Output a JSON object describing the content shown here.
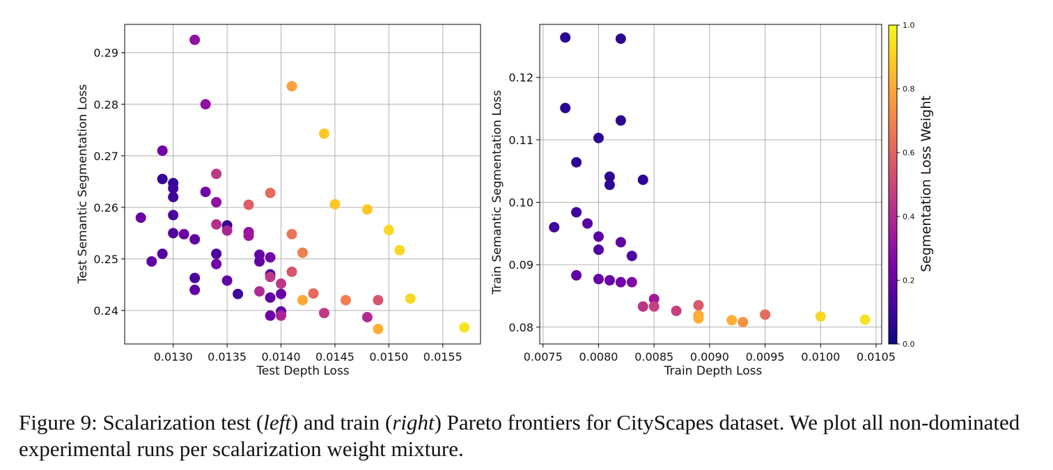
{
  "chart_data": [
    {
      "type": "scatter",
      "xlabel": "Test Depth Loss",
      "ylabel": "Test Semantic Segmentation Loss",
      "xlim": [
        0.01255,
        0.01585
      ],
      "ylim": [
        0.2335,
        0.2955
      ],
      "xticks": [
        "0.0130",
        "0.0135",
        "0.0140",
        "0.0145",
        "0.0150",
        "0.0155"
      ],
      "xtick_values": [
        0.013,
        0.0135,
        0.014,
        0.0145,
        0.015,
        0.0155
      ],
      "yticks": [
        "0.24",
        "0.25",
        "0.26",
        "0.27",
        "0.28",
        "0.29"
      ],
      "ytick_values": [
        0.24,
        0.25,
        0.26,
        0.27,
        0.28,
        0.29
      ],
      "grid": true,
      "color_by": "Segmentation Loss Weight",
      "points": [
        {
          "x": 0.0132,
          "y": 0.2925,
          "w": 0.3
        },
        {
          "x": 0.0133,
          "y": 0.28,
          "w": 0.3
        },
        {
          "x": 0.0129,
          "y": 0.271,
          "w": 0.22
        },
        {
          "x": 0.0129,
          "y": 0.2655,
          "w": 0.08
        },
        {
          "x": 0.013,
          "y": 0.2647,
          "w": 0.08
        },
        {
          "x": 0.013,
          "y": 0.2637,
          "w": 0.1
        },
        {
          "x": 0.013,
          "y": 0.262,
          "w": 0.1
        },
        {
          "x": 0.013,
          "y": 0.2585,
          "w": 0.12
        },
        {
          "x": 0.0127,
          "y": 0.258,
          "w": 0.2
        },
        {
          "x": 0.013,
          "y": 0.255,
          "w": 0.15
        },
        {
          "x": 0.0131,
          "y": 0.2548,
          "w": 0.2
        },
        {
          "x": 0.0132,
          "y": 0.2538,
          "w": 0.18
        },
        {
          "x": 0.0129,
          "y": 0.251,
          "w": 0.14
        },
        {
          "x": 0.0128,
          "y": 0.2495,
          "w": 0.18
        },
        {
          "x": 0.0132,
          "y": 0.2463,
          "w": 0.12
        },
        {
          "x": 0.0132,
          "y": 0.244,
          "w": 0.18
        },
        {
          "x": 0.0133,
          "y": 0.263,
          "w": 0.22
        },
        {
          "x": 0.0134,
          "y": 0.2665,
          "w": 0.45
        },
        {
          "x": 0.0134,
          "y": 0.261,
          "w": 0.3
        },
        {
          "x": 0.0134,
          "y": 0.2567,
          "w": 0.42
        },
        {
          "x": 0.0135,
          "y": 0.2565,
          "w": 0.08
        },
        {
          "x": 0.0135,
          "y": 0.2555,
          "w": 0.38
        },
        {
          "x": 0.0134,
          "y": 0.251,
          "w": 0.12
        },
        {
          "x": 0.0134,
          "y": 0.249,
          "w": 0.22
        },
        {
          "x": 0.0135,
          "y": 0.2458,
          "w": 0.18
        },
        {
          "x": 0.0136,
          "y": 0.2432,
          "w": 0.1
        },
        {
          "x": 0.0137,
          "y": 0.2605,
          "w": 0.58
        },
        {
          "x": 0.0137,
          "y": 0.2552,
          "w": 0.3
        },
        {
          "x": 0.0137,
          "y": 0.2545,
          "w": 0.34
        },
        {
          "x": 0.0138,
          "y": 0.2508,
          "w": 0.18
        },
        {
          "x": 0.0138,
          "y": 0.2495,
          "w": 0.18
        },
        {
          "x": 0.0138,
          "y": 0.2437,
          "w": 0.4
        },
        {
          "x": 0.0139,
          "y": 0.2628,
          "w": 0.62
        },
        {
          "x": 0.0139,
          "y": 0.2503,
          "w": 0.22
        },
        {
          "x": 0.0139,
          "y": 0.247,
          "w": 0.12
        },
        {
          "x": 0.0139,
          "y": 0.2465,
          "w": 0.45
        },
        {
          "x": 0.0139,
          "y": 0.2425,
          "w": 0.18
        },
        {
          "x": 0.0139,
          "y": 0.239,
          "w": 0.22
        },
        {
          "x": 0.014,
          "y": 0.2452,
          "w": 0.45
        },
        {
          "x": 0.014,
          "y": 0.2432,
          "w": 0.2
        },
        {
          "x": 0.014,
          "y": 0.2398,
          "w": 0.18
        },
        {
          "x": 0.014,
          "y": 0.239,
          "w": 0.38
        },
        {
          "x": 0.0141,
          "y": 0.2835,
          "w": 0.78
        },
        {
          "x": 0.0141,
          "y": 0.2548,
          "w": 0.65
        },
        {
          "x": 0.0141,
          "y": 0.2475,
          "w": 0.55
        },
        {
          "x": 0.0142,
          "y": 0.2512,
          "w": 0.68
        },
        {
          "x": 0.0142,
          "y": 0.242,
          "w": 0.8
        },
        {
          "x": 0.0143,
          "y": 0.2433,
          "w": 0.62
        },
        {
          "x": 0.0144,
          "y": 0.2743,
          "w": 0.88
        },
        {
          "x": 0.0144,
          "y": 0.2395,
          "w": 0.45
        },
        {
          "x": 0.0145,
          "y": 0.2606,
          "w": 0.88
        },
        {
          "x": 0.0146,
          "y": 0.242,
          "w": 0.68
        },
        {
          "x": 0.0148,
          "y": 0.2596,
          "w": 0.88
        },
        {
          "x": 0.0148,
          "y": 0.2387,
          "w": 0.4
        },
        {
          "x": 0.0149,
          "y": 0.242,
          "w": 0.55
        },
        {
          "x": 0.0149,
          "y": 0.2364,
          "w": 0.82
        },
        {
          "x": 0.015,
          "y": 0.2556,
          "w": 0.92
        },
        {
          "x": 0.0151,
          "y": 0.2517,
          "w": 0.92
        },
        {
          "x": 0.0152,
          "y": 0.2423,
          "w": 0.92
        },
        {
          "x": 0.0157,
          "y": 0.2367,
          "w": 0.95
        }
      ]
    },
    {
      "type": "scatter",
      "xlabel": "Train Depth Loss",
      "ylabel": "Train Semantic Segmentation Loss",
      "xlim": [
        0.00747,
        0.01055
      ],
      "ylim": [
        0.0773,
        0.1285
      ],
      "xticks": [
        "0.0075",
        "0.0080",
        "0.0085",
        "0.0090",
        "0.0095",
        "0.0100",
        "0.0105"
      ],
      "xtick_values": [
        0.0075,
        0.008,
        0.0085,
        0.009,
        0.0095,
        0.01,
        0.0105
      ],
      "yticks": [
        "0.08",
        "0.09",
        "0.10",
        "0.11",
        "0.12"
      ],
      "ytick_values": [
        0.08,
        0.09,
        0.1,
        0.11,
        0.12
      ],
      "grid": true,
      "color_by": "Segmentation Loss Weight",
      "points": [
        {
          "x": 0.0077,
          "y": 0.1264,
          "w": 0.06
        },
        {
          "x": 0.0082,
          "y": 0.1262,
          "w": 0.06
        },
        {
          "x": 0.0077,
          "y": 0.1151,
          "w": 0.06
        },
        {
          "x": 0.0082,
          "y": 0.1131,
          "w": 0.06
        },
        {
          "x": 0.008,
          "y": 0.1103,
          "w": 0.06
        },
        {
          "x": 0.0078,
          "y": 0.1064,
          "w": 0.06
        },
        {
          "x": 0.0081,
          "y": 0.1041,
          "w": 0.06
        },
        {
          "x": 0.0081,
          "y": 0.1028,
          "w": 0.06
        },
        {
          "x": 0.0084,
          "y": 0.1036,
          "w": 0.06
        },
        {
          "x": 0.0078,
          "y": 0.0984,
          "w": 0.1
        },
        {
          "x": 0.0076,
          "y": 0.096,
          "w": 0.1
        },
        {
          "x": 0.0079,
          "y": 0.0966,
          "w": 0.16
        },
        {
          "x": 0.008,
          "y": 0.0945,
          "w": 0.16
        },
        {
          "x": 0.008,
          "y": 0.0924,
          "w": 0.14
        },
        {
          "x": 0.0082,
          "y": 0.0936,
          "w": 0.18
        },
        {
          "x": 0.0083,
          "y": 0.0914,
          "w": 0.14
        },
        {
          "x": 0.0078,
          "y": 0.0883,
          "w": 0.18
        },
        {
          "x": 0.008,
          "y": 0.0877,
          "w": 0.2
        },
        {
          "x": 0.0081,
          "y": 0.0875,
          "w": 0.2
        },
        {
          "x": 0.0082,
          "y": 0.0872,
          "w": 0.22
        },
        {
          "x": 0.0083,
          "y": 0.0872,
          "w": 0.26
        },
        {
          "x": 0.0085,
          "y": 0.0845,
          "w": 0.34
        },
        {
          "x": 0.0084,
          "y": 0.0833,
          "w": 0.44
        },
        {
          "x": 0.0085,
          "y": 0.0833,
          "w": 0.48
        },
        {
          "x": 0.0087,
          "y": 0.0826,
          "w": 0.48
        },
        {
          "x": 0.0089,
          "y": 0.0835,
          "w": 0.56
        },
        {
          "x": 0.0089,
          "y": 0.0819,
          "w": 0.8
        },
        {
          "x": 0.0089,
          "y": 0.0814,
          "w": 0.82
        },
        {
          "x": 0.0092,
          "y": 0.0811,
          "w": 0.82
        },
        {
          "x": 0.0093,
          "y": 0.0808,
          "w": 0.74
        },
        {
          "x": 0.0095,
          "y": 0.082,
          "w": 0.62
        },
        {
          "x": 0.01,
          "y": 0.0817,
          "w": 0.92
        },
        {
          "x": 0.0104,
          "y": 0.0812,
          "w": 0.95
        }
      ]
    }
  ],
  "colorbar": {
    "label": "Segmentation Loss Weight",
    "ticks": [
      "0.0",
      "0.2",
      "0.4",
      "0.6",
      "0.8",
      "1.0"
    ],
    "tick_values": [
      0.0,
      0.2,
      0.4,
      0.6,
      0.8,
      1.0
    ],
    "colormap": [
      "#0d0887",
      "#46039f",
      "#7201a8",
      "#9c179e",
      "#bd3786",
      "#d8576b",
      "#ed7953",
      "#fb9f3a",
      "#fdca26",
      "#f0f921"
    ]
  },
  "caption": {
    "part1": "Figure 9: Scalarization test (",
    "left": "left",
    "part2": ") and train (",
    "right": "right",
    "part3": ") Pareto frontiers for CityScapes dataset. We plot all non-dominated experimental runs per scalarization weight mixture."
  }
}
